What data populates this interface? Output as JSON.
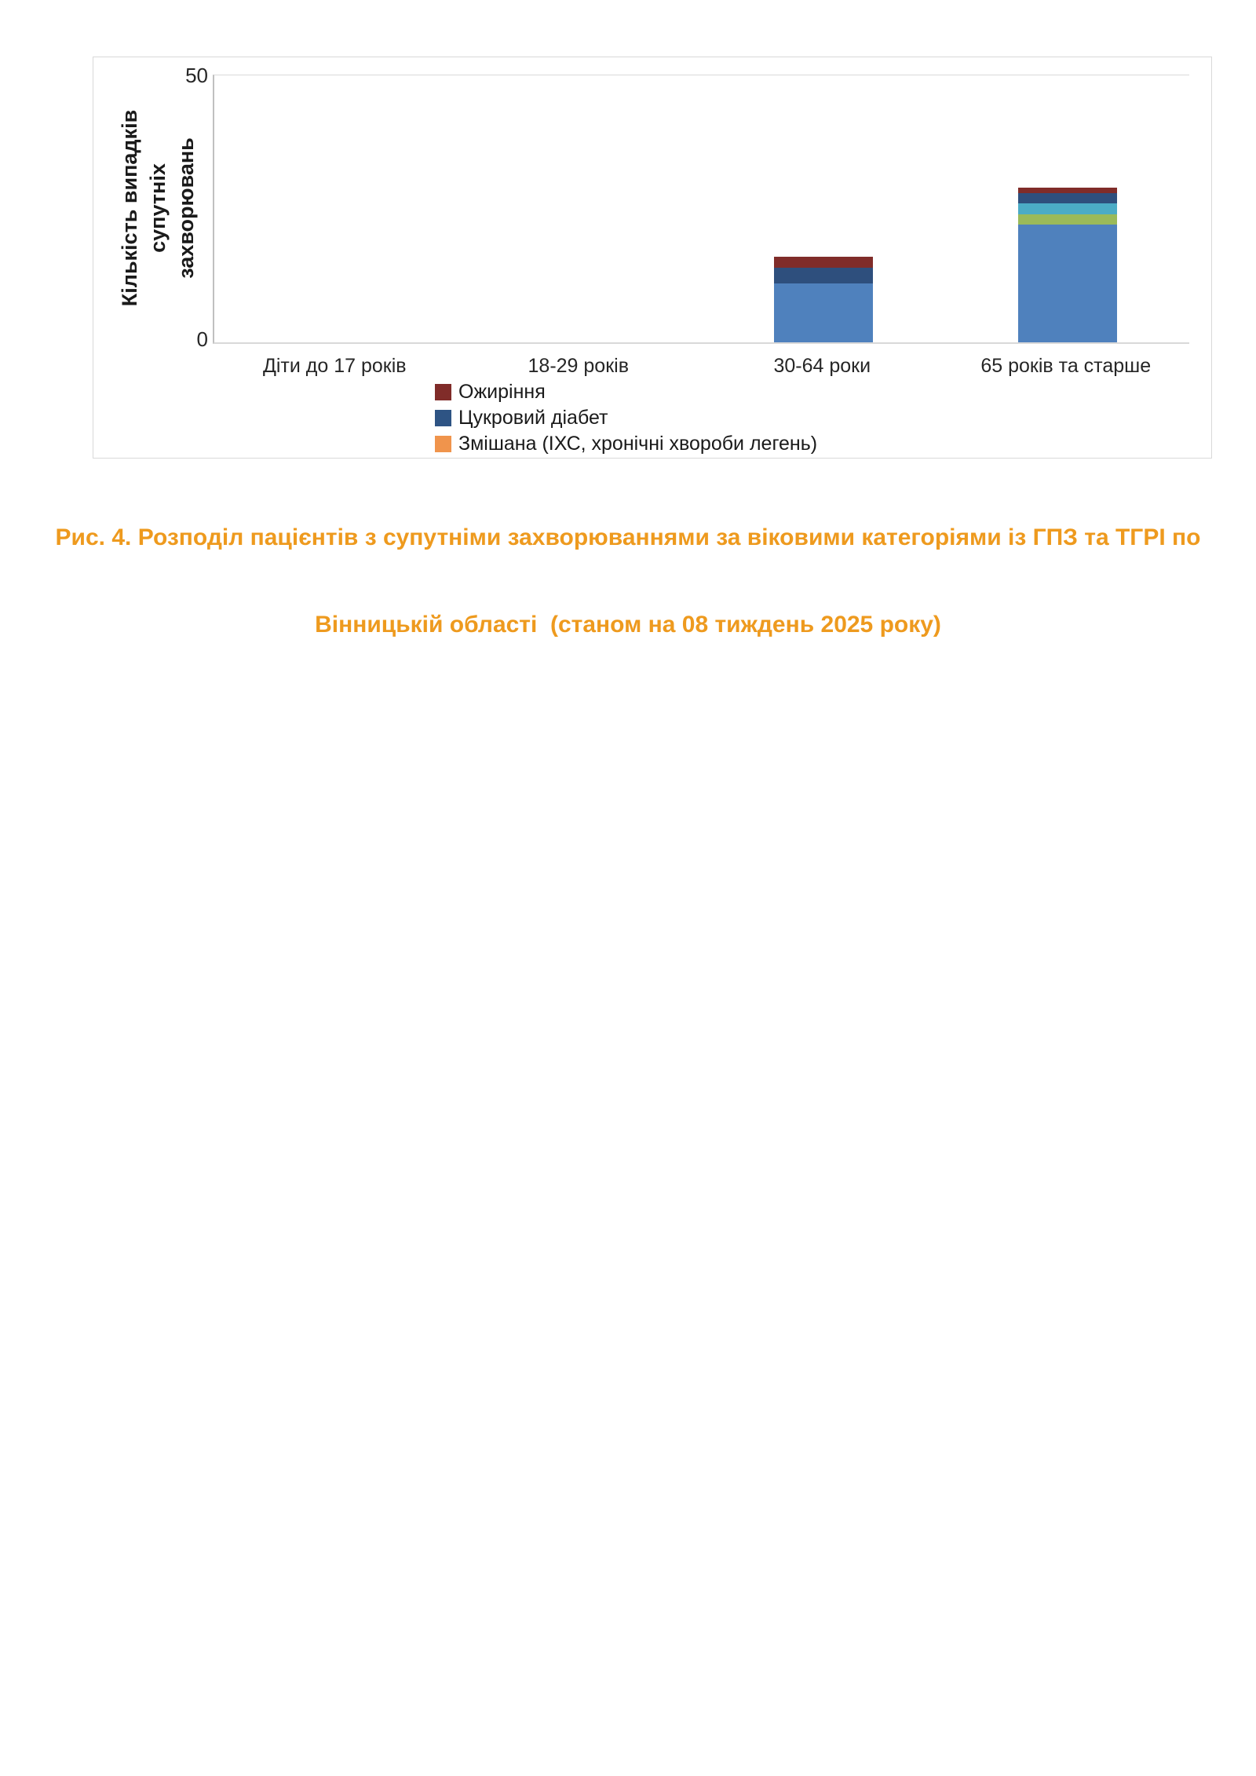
{
  "figure": {
    "caption_line1": "Рис. 4. Розподіл пацієнтів з супутніми захворюваннями за віковими категоріями із ГПЗ та ТГРІ по",
    "caption_line2": "Вінницькій області  (станом на 08 тиждень 2025 року)",
    "caption_color": "#EE9A1E"
  },
  "chart_data": {
    "type": "bar",
    "stacked": true,
    "title": "",
    "xlabel": "",
    "ylabel": "Кількість випадків супутніх захворювань",
    "ylabel_lines": [
      "Кількість випадків супутніх",
      "захворювань"
    ],
    "ylim": [
      0,
      50
    ],
    "ytick_labels": [
      "0",
      "50"
    ],
    "grid": false,
    "legend_position": "bottom-left",
    "categories": [
      "Діти до 17 років",
      "18-29 років",
      "30-64 роки",
      "65 років та старше"
    ],
    "series": [
      {
        "label": "",
        "color": "#4F81BD",
        "values": [
          0,
          0,
          11,
          22
        ]
      },
      {
        "label": "",
        "color": "#9ABA5A",
        "values": [
          0,
          0,
          0,
          2
        ]
      },
      {
        "label": "",
        "color": "#4BACC6",
        "values": [
          0,
          0,
          0,
          2
        ]
      },
      {
        "label": "Цукровий діабет",
        "color": "#2E4F7D",
        "values": [
          0,
          0,
          3,
          2
        ]
      },
      {
        "label": "Ожиріння",
        "color": "#802C29",
        "values": [
          0,
          0,
          2,
          1
        ]
      },
      {
        "label": "Змішана (ІХС, хронічні хвороби легень)",
        "color": "#F0944C",
        "values": [
          0,
          0,
          0,
          0
        ]
      }
    ],
    "legend_entries": [
      {
        "label": "Ожиріння",
        "color": "#802C29"
      },
      {
        "label": "Цукровий діабет",
        "color": "#2E5484"
      },
      {
        "label": "Змішана (ІХС, хронічні хвороби легень)",
        "color": "#F0944C"
      }
    ]
  }
}
